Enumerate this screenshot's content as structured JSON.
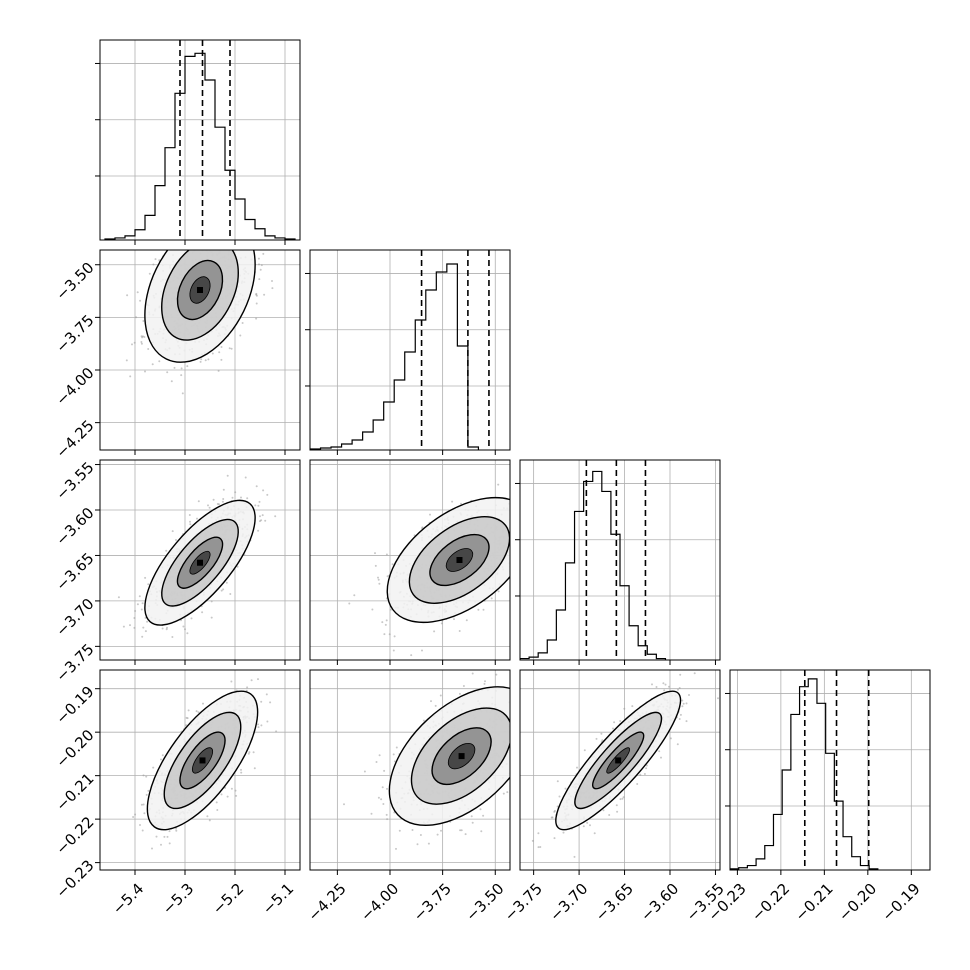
{
  "chart_data": {
    "type": "corner",
    "title": "",
    "colors": {
      "hist_line": "#000000",
      "quantile_line": "#000000",
      "grid": "#b0b0b0",
      "scatter": "#9a9a9a",
      "density_dark": "#000000"
    },
    "grid": true,
    "quantiles": [
      0.16,
      0.5,
      0.84
    ],
    "parameters": [
      {
        "label": "",
        "range": [
          -5.47,
          -5.07
        ],
        "ticks": [
          -5.4,
          -5.3,
          -5.2,
          -5.1
        ],
        "tick_labels": [
          "−5.4",
          "−5.3",
          "−5.2",
          "−5.1"
        ],
        "quantile_values": [
          -5.31,
          -5.265,
          -5.21
        ],
        "hist_edges_start": -5.46,
        "hist_bin_width": 0.02,
        "hist_counts": [
          1,
          2,
          4,
          10,
          24,
          53,
          90,
          143,
          179,
          182,
          156,
          110,
          68,
          40,
          20,
          11,
          4,
          2,
          1
        ],
        "hist_ylim": [
          0,
          195
        ]
      },
      {
        "label": "",
        "range": [
          -4.38,
          -3.43
        ],
        "ticks": [
          -4.25,
          -4.0,
          -3.75,
          -3.5
        ],
        "tick_labels": [
          "−4.25",
          "−4.00",
          "−3.75",
          "−3.50"
        ],
        "quantile_values": [
          -3.85,
          -3.63,
          -3.53
        ],
        "hist_edges_start": -4.38,
        "hist_bin_width": 0.05,
        "hist_counts": [
          1,
          2,
          3,
          6,
          10,
          18,
          30,
          48,
          70,
          98,
          130,
          160,
          178,
          186,
          104,
          3
        ],
        "hist_ylim": [
          0,
          200
        ]
      },
      {
        "label": "",
        "range": [
          -3.765,
          -3.545
        ],
        "ticks": [
          -3.75,
          -3.7,
          -3.65,
          -3.6,
          -3.55
        ],
        "tick_labels": [
          "−3.75",
          "−3.70",
          "−3.65",
          "−3.60",
          "−3.55"
        ],
        "quantile_values": [
          -3.692,
          -3.659,
          -3.627
        ],
        "hist_edges_start": -3.765,
        "hist_bin_width": 0.01,
        "hist_counts": [
          1,
          2,
          5,
          14,
          35,
          68,
          104,
          125,
          132,
          118,
          88,
          52,
          24,
          10,
          4,
          1
        ],
        "hist_ylim": [
          0,
          140
        ]
      },
      {
        "label": "",
        "range": [
          -0.2317,
          -0.1857
        ],
        "ticks": [
          -0.23,
          -0.22,
          -0.21,
          -0.2,
          -0.19
        ],
        "tick_labels": [
          "−0.23",
          "−0.22",
          "−0.21",
          "−0.20",
          "−0.19"
        ],
        "y_tick_labels": [
          "−0.19",
          "−0.20",
          "−0.21",
          "−0.22",
          "−0.23"
        ],
        "quantile_values": [
          -0.2145,
          -0.2072,
          -0.1998
        ],
        "hist_edges_start": -0.2317,
        "hist_bin_width": 0.002,
        "hist_counts": [
          1,
          2,
          4,
          10,
          22,
          50,
          90,
          140,
          165,
          172,
          150,
          105,
          62,
          30,
          12,
          4,
          1
        ],
        "hist_ylim": [
          0,
          180
        ]
      }
    ],
    "pairs": [
      {
        "x": 0,
        "y": 1,
        "mean": [
          -5.27,
          -3.62
        ],
        "sd": [
          0.045,
          0.14
        ],
        "corr": 0.35,
        "n_points": 700,
        "seed": 11
      },
      {
        "x": 0,
        "y": 2,
        "mean": [
          -5.27,
          -3.658
        ],
        "sd": [
          0.045,
          0.028
        ],
        "corr": 0.72,
        "n_points": 700,
        "seed": 23
      },
      {
        "x": 1,
        "y": 2,
        "mean": [
          -3.67,
          -3.655
        ],
        "sd": [
          0.14,
          0.028
        ],
        "corr": 0.5,
        "n_points": 700,
        "seed": 37
      },
      {
        "x": 0,
        "y": 3,
        "mean": [
          -5.265,
          -0.2065
        ],
        "sd": [
          0.045,
          0.0065
        ],
        "corr": 0.7,
        "n_points": 700,
        "seed": 41
      },
      {
        "x": 1,
        "y": 3,
        "mean": [
          -3.66,
          -0.2055
        ],
        "sd": [
          0.14,
          0.0065
        ],
        "corr": 0.5,
        "n_points": 700,
        "seed": 53
      },
      {
        "x": 2,
        "y": 3,
        "mean": [
          -3.657,
          -0.2065
        ],
        "sd": [
          0.028,
          0.0065
        ],
        "corr": 0.87,
        "n_points": 700,
        "seed": 67
      }
    ]
  }
}
